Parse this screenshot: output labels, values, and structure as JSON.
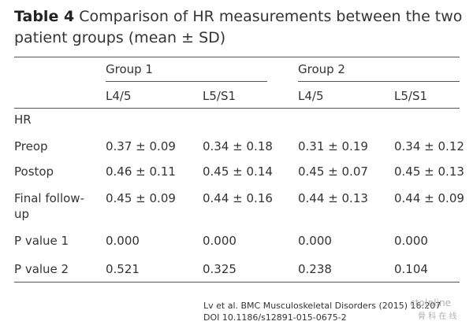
{
  "table": {
    "label": "Table 4",
    "caption": "Comparison of HR measurements between the two patient groups (mean ± SD)",
    "groups": [
      "Group 1",
      "Group 2"
    ],
    "columns": [
      "L4/5",
      "L5/S1",
      "L4/5",
      "L5/S1"
    ],
    "section": "HR",
    "rows": [
      [
        "Preop",
        "0.37 ± 0.09",
        "0.34 ± 0.18",
        "0.31 ± 0.19",
        "0.34 ± 0.12"
      ],
      [
        "Postop",
        "0.46 ± 0.11",
        "0.45 ± 0.14",
        "0.45 ± 0.07",
        "0.45 ± 0.13"
      ],
      [
        "Final follow-up",
        "0.45 ± 0.09",
        "0.44 ± 0.16",
        "0.44 ± 0.13",
        "0.44 ± 0.09"
      ],
      [
        "P value 1",
        "0.000",
        "0.000",
        "0.000",
        "0.000"
      ],
      [
        "P value 2",
        "0.521",
        "0.325",
        "0.238",
        "0.104"
      ]
    ]
  },
  "footer": {
    "citation": "Lv et al. BMC Musculoskeletal Disorders (2015) 16:207",
    "doi": "DOI 10.1186/s12891-015-0675-2",
    "watermark": "cto|nline",
    "watermark_sub": "骨 科 在 线"
  }
}
